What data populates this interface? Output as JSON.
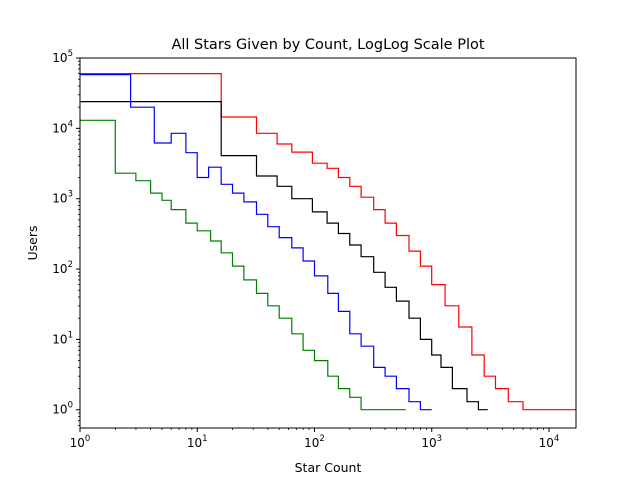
{
  "chart_data": {
    "type": "line",
    "title": "All Stars Given by Count, LogLog Scale Plot",
    "xlabel": "Star Count",
    "ylabel": "Users",
    "xscale": "log",
    "yscale": "log",
    "xlim": [
      1,
      17000
    ],
    "ylim": [
      0.55,
      100000
    ],
    "x_ticks": [
      {
        "value": 1,
        "base": "10",
        "exp": "0"
      },
      {
        "value": 10,
        "base": "10",
        "exp": "1"
      },
      {
        "value": 100,
        "base": "10",
        "exp": "2"
      },
      {
        "value": 1000,
        "base": "10",
        "exp": "3"
      },
      {
        "value": 10000,
        "base": "10",
        "exp": "4"
      }
    ],
    "y_ticks": [
      {
        "value": 1,
        "base": "10",
        "exp": "0"
      },
      {
        "value": 10,
        "base": "10",
        "exp": "1"
      },
      {
        "value": 100,
        "base": "10",
        "exp": "2"
      },
      {
        "value": 1000,
        "base": "10",
        "exp": "3"
      },
      {
        "value": 10000,
        "base": "10",
        "exp": "4"
      },
      {
        "value": 100000,
        "base": "10",
        "exp": "5"
      }
    ],
    "grid": false,
    "legend": "none",
    "series": [
      {
        "color": "#ff0000",
        "x": [
          1,
          16,
          32,
          48,
          64,
          96,
          128,
          160,
          200,
          250,
          320,
          400,
          500,
          640,
          800,
          1000,
          1300,
          1700,
          2200,
          2800,
          3500,
          4500,
          6000,
          8000,
          11000,
          17000
        ],
        "y": [
          60000,
          14500,
          8500,
          6000,
          4600,
          3200,
          2700,
          2000,
          1500,
          1050,
          700,
          450,
          300,
          180,
          110,
          60,
          30,
          15,
          6,
          3,
          2,
          1.3,
          1,
          1,
          1,
          1
        ]
      },
      {
        "color": "#000000",
        "x": [
          1,
          16,
          32,
          48,
          64,
          96,
          128,
          160,
          200,
          250,
          320,
          400,
          500,
          640,
          800,
          1000,
          1200,
          1500,
          2000,
          2500,
          3000
        ],
        "y": [
          24000,
          4100,
          2100,
          1500,
          1000,
          650,
          450,
          320,
          220,
          150,
          90,
          55,
          35,
          20,
          10,
          6,
          4,
          2,
          1.3,
          1,
          1
        ]
      },
      {
        "color": "#0000ff",
        "x": [
          1,
          2.7,
          4.3,
          6,
          8,
          10,
          12.5,
          16,
          20,
          25,
          32,
          40,
          50,
          64,
          80,
          100,
          130,
          160,
          200,
          250,
          320,
          400,
          500,
          640,
          800,
          1000
        ],
        "y": [
          58000,
          20000,
          6200,
          8500,
          4500,
          2000,
          2800,
          1600,
          1200,
          900,
          600,
          400,
          280,
          200,
          130,
          80,
          45,
          25,
          12,
          8,
          4,
          3,
          2,
          1.3,
          1,
          1
        ]
      },
      {
        "color": "#008000",
        "x": [
          1,
          2,
          3,
          4,
          5,
          6,
          8,
          10,
          13,
          16,
          20,
          25,
          32,
          40,
          50,
          64,
          80,
          100,
          130,
          160,
          200,
          250,
          320,
          400,
          500,
          600
        ],
        "y": [
          13000,
          2300,
          1800,
          1200,
          950,
          700,
          450,
          350,
          250,
          170,
          110,
          70,
          45,
          30,
          20,
          12,
          7,
          5,
          3,
          2,
          1.5,
          1,
          1,
          1,
          1,
          1
        ]
      }
    ]
  }
}
